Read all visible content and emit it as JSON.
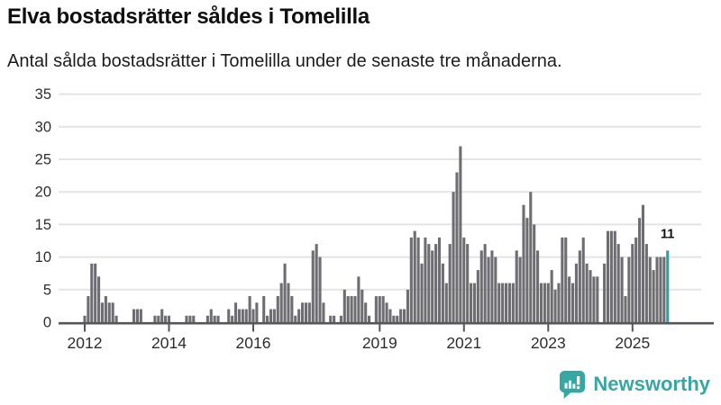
{
  "header": {
    "title": "Elva bostadsrätter såldes i Tomelilla",
    "subtitle": "Antal sålda bostadsrätter i Tomelilla under de senaste tre månaderna."
  },
  "chart_data": {
    "type": "bar",
    "title": "Elva bostadsrätter såldes i Tomelilla",
    "subtitle": "Antal sålda bostadsrätter i Tomelilla under de senaste tre månaderna.",
    "xlabel": "",
    "ylabel": "",
    "ylim": [
      0,
      35
    ],
    "yticks": [
      0,
      5,
      10,
      15,
      20,
      25,
      30,
      35
    ],
    "grid": "horizontal",
    "legend": "none",
    "x_start": "2012-01",
    "x_end": "2025-11",
    "x_unit": "month",
    "xticks": [
      {
        "label": "2012",
        "month_index": 0
      },
      {
        "label": "2014",
        "month_index": 24
      },
      {
        "label": "2016",
        "month_index": 48
      },
      {
        "label": "2019",
        "month_index": 84
      },
      {
        "label": "2021",
        "month_index": 108
      },
      {
        "label": "2023",
        "month_index": 132
      },
      {
        "label": "2025",
        "month_index": 156
      }
    ],
    "values": [
      1,
      4,
      9,
      9,
      7,
      3,
      4,
      3,
      3,
      1,
      0,
      0,
      0,
      0,
      2,
      2,
      2,
      0,
      0,
      0,
      1,
      1,
      2,
      1,
      1,
      0,
      0,
      0,
      0,
      1,
      1,
      1,
      0,
      0,
      0,
      1,
      2,
      1,
      1,
      0,
      0,
      2,
      1,
      3,
      2,
      2,
      2,
      4,
      2,
      3,
      0,
      4,
      1,
      2,
      2,
      4,
      6,
      9,
      6,
      4,
      1,
      2,
      3,
      3,
      3,
      11,
      12,
      10,
      3,
      0,
      1,
      1,
      0,
      1,
      5,
      4,
      4,
      4,
      7,
      5,
      3,
      1,
      0,
      4,
      4,
      4,
      3,
      2,
      1,
      1,
      2,
      2,
      5,
      13,
      14,
      13,
      9,
      13,
      12,
      11,
      12,
      13,
      9,
      6,
      12,
      20,
      23,
      27,
      13,
      12,
      6,
      6,
      8,
      11,
      12,
      10,
      11,
      10,
      6,
      6,
      6,
      6,
      6,
      11,
      10,
      18,
      16,
      20,
      15,
      11,
      6,
      6,
      6,
      8,
      5,
      6,
      13,
      13,
      7,
      6,
      9,
      11,
      13,
      9,
      8,
      7,
      7,
      0,
      9,
      14,
      14,
      14,
      12,
      10,
      4,
      10,
      12,
      13,
      16,
      18,
      12,
      10,
      8,
      10,
      10,
      10,
      11
    ],
    "highlight": {
      "index": 166,
      "value": 11,
      "label": "11"
    },
    "colors": {
      "bar": "#6e6e72",
      "highlight": "#26a4a2",
      "grid": "#e4e4e4",
      "axis": "#55555a",
      "tick_text": "#2e2e2e",
      "label_text": "#111111"
    }
  },
  "footer": {
    "brand": "Newsworthy",
    "brand_color": "#38a6a3"
  }
}
